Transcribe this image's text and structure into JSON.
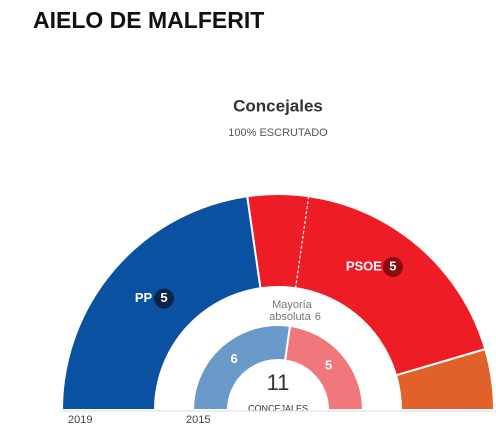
{
  "chart_data": {
    "type": "parliament",
    "page_title": "AIELO DE MALFERIT",
    "title": "Concejales",
    "subtitle": "100% ESCRUTADO",
    "outer": {
      "label": "2019",
      "parties": [
        {
          "name": "PP",
          "value": 5,
          "color": "#0a51a1",
          "badge": "#0d2447"
        },
        {
          "name": "PSOE",
          "value": 5,
          "color": "#ee1c25",
          "badge": "#8b0a0e"
        },
        {
          "value": 1,
          "color": "#e0622a"
        }
      ]
    },
    "inner": {
      "label": "2015",
      "parties": [
        {
          "value": 6,
          "color": "#6a9ac9"
        },
        {
          "value": 5,
          "color": "#f0777c"
        }
      ]
    },
    "total": 11,
    "total_label": "CONCEJALES",
    "majority_text": [
      "Mayoría",
      "absoluta"
    ],
    "majority": 6
  }
}
